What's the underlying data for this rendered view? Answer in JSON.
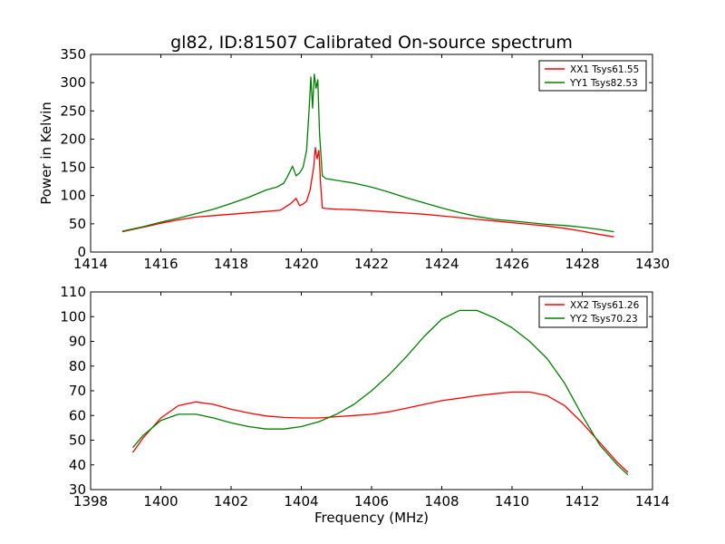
{
  "figure": {
    "title": "gl82, ID:81507 Calibrated On-source spectrum",
    "xlabel": "Frequency (MHz)",
    "top_ylabel": "Power in Kelvin"
  },
  "chart_data": [
    {
      "type": "line",
      "title": "gl82, ID:81507 Calibrated On-source spectrum",
      "xlabel": "",
      "ylabel": "Power in Kelvin",
      "xlim": [
        1414,
        1430
      ],
      "ylim": [
        0,
        350
      ],
      "xticks": [
        1414,
        1416,
        1418,
        1420,
        1422,
        1424,
        1426,
        1428,
        1430
      ],
      "yticks": [
        0,
        50,
        100,
        150,
        200,
        250,
        300,
        350
      ],
      "grid": false,
      "legend": "top-right",
      "series": [
        {
          "name": "XX1 Tsys61.55",
          "color": "#ff0000",
          "x": [
            1414.9,
            1415.5,
            1416,
            1416.5,
            1417,
            1417.5,
            1418,
            1418.5,
            1419,
            1419.4,
            1419.55,
            1419.7,
            1419.85,
            1419.95,
            1420.05,
            1420.15,
            1420.25,
            1420.35,
            1420.4,
            1420.45,
            1420.5,
            1420.55,
            1420.6,
            1420.7,
            1421,
            1421.5,
            1422,
            1422.5,
            1423,
            1423.5,
            1424,
            1424.5,
            1425,
            1425.5,
            1426,
            1426.5,
            1427,
            1427.5,
            1428,
            1428.5,
            1428.9
          ],
          "y": [
            36,
            44,
            51,
            57,
            62,
            64.5,
            67,
            69.5,
            72,
            74,
            80,
            86,
            95,
            82,
            85,
            90,
            110,
            150,
            185,
            165,
            180,
            120,
            78,
            77,
            76,
            75,
            73,
            71,
            69,
            67,
            64,
            61,
            58,
            55,
            52,
            49,
            46,
            42,
            37,
            31,
            27
          ]
        },
        {
          "name": "YY1 Tsys82.53",
          "color": "#008000",
          "x": [
            1414.9,
            1415.5,
            1416,
            1416.5,
            1417,
            1417.5,
            1418,
            1418.5,
            1419,
            1419.3,
            1419.5,
            1419.6,
            1419.75,
            1419.85,
            1419.95,
            1420.05,
            1420.15,
            1420.22,
            1420.27,
            1420.32,
            1420.37,
            1420.42,
            1420.47,
            1420.52,
            1420.6,
            1420.7,
            1421,
            1421.5,
            1422,
            1422.5,
            1423,
            1423.5,
            1424,
            1424.5,
            1425,
            1425.5,
            1426,
            1426.5,
            1427,
            1427.5,
            1428,
            1428.5,
            1428.9
          ],
          "y": [
            37,
            45,
            53,
            60,
            68,
            76,
            86,
            97,
            110,
            115,
            122,
            133,
            152,
            135,
            140,
            150,
            180,
            250,
            310,
            255,
            315,
            290,
            305,
            210,
            135,
            130,
            127,
            122,
            115,
            106,
            96,
            87,
            78,
            70,
            63,
            58,
            55,
            52,
            49,
            47,
            44,
            40,
            36
          ]
        }
      ]
    },
    {
      "type": "line",
      "title": "",
      "xlabel": "Frequency (MHz)",
      "ylabel": "",
      "xlim": [
        1398,
        1414
      ],
      "ylim": [
        30,
        110
      ],
      "xticks": [
        1398,
        1400,
        1402,
        1404,
        1406,
        1408,
        1410,
        1412,
        1414
      ],
      "yticks": [
        30,
        40,
        50,
        60,
        70,
        80,
        90,
        100,
        110
      ],
      "grid": false,
      "legend": "top-right",
      "series": [
        {
          "name": "XX2 Tsys61.26",
          "color": "#ff0000",
          "x": [
            1399.2,
            1399.5,
            1400,
            1400.5,
            1401,
            1401.5,
            1402,
            1402.5,
            1403,
            1403.5,
            1404,
            1404.5,
            1405,
            1405.5,
            1406,
            1406.5,
            1407,
            1407.5,
            1408,
            1408.5,
            1409,
            1409.5,
            1410,
            1410.5,
            1411,
            1411.5,
            1412,
            1412.5,
            1413,
            1413.3
          ],
          "y": [
            45,
            51,
            59,
            64,
            65.5,
            64.5,
            62.5,
            61,
            59.8,
            59.2,
            59,
            59,
            59.5,
            60,
            60.5,
            61.5,
            63,
            64.5,
            66,
            67,
            68,
            68.8,
            69.5,
            69.5,
            68,
            64,
            57,
            49,
            41,
            37
          ]
        },
        {
          "name": "YY2 Tsys70.23",
          "color": "#008000",
          "x": [
            1399.2,
            1399.5,
            1400,
            1400.5,
            1401,
            1401.5,
            1402,
            1402.5,
            1403,
            1403.5,
            1404,
            1404.5,
            1405,
            1405.5,
            1406,
            1406.5,
            1407,
            1407.5,
            1408,
            1408.5,
            1409,
            1409.5,
            1410,
            1410.5,
            1411,
            1411.5,
            1412,
            1412.5,
            1413,
            1413.3
          ],
          "y": [
            47,
            52,
            58,
            60.5,
            60.5,
            59,
            57,
            55.5,
            54.5,
            54.5,
            55.5,
            57.5,
            60.5,
            64.5,
            70,
            76.5,
            84,
            92,
            99,
            102.5,
            102.5,
            99.5,
            95.5,
            90,
            83,
            73,
            60,
            48,
            40,
            36
          ]
        }
      ]
    }
  ]
}
